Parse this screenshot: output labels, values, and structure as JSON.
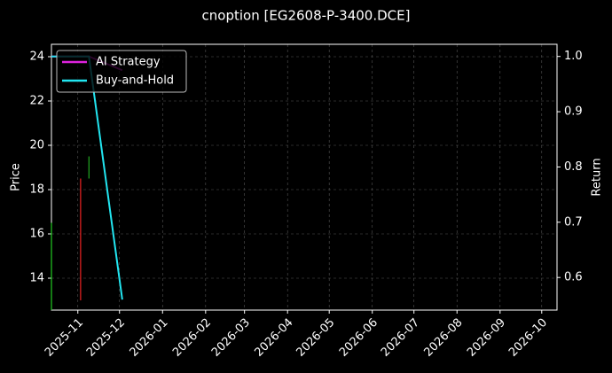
{
  "chart_data": {
    "type": "candle-return",
    "title": "cnoption [EG2608-P-3400.DCE]",
    "y_label": "Price",
    "y2_label": "Return",
    "xlim": [
      "2025-10-13",
      "2026-10-12"
    ],
    "xticks": [
      "2025-11",
      "2025-12",
      "2026-01",
      "2026-02",
      "2026-03",
      "2026-04",
      "2026-05",
      "2026-06",
      "2026-07",
      "2026-08",
      "2026-09",
      "2026-10"
    ],
    "ylim": [
      12.56,
      24.56
    ],
    "yticks": [
      14,
      16,
      18,
      20,
      22,
      24
    ],
    "y2lim": [
      0.541,
      1.022
    ],
    "y2ticks": [
      0.6,
      0.7,
      0.8,
      0.9,
      {
        "value": 1.0,
        "label": "1.0"
      }
    ],
    "grid": true,
    "legend": "upper left",
    "candles": {
      "x": [
        "2025-10-13",
        "2025-11-03",
        "2025-11-09"
      ],
      "high": [
        16.5,
        18.5,
        19.5
      ],
      "low": [
        12.56,
        13.0,
        18.5
      ],
      "colors": [
        "#22cc22",
        "#ee2222",
        "#22aa22"
      ]
    },
    "x": [
      "2025-10-13",
      "2025-11-09",
      "2025-12-03"
    ],
    "series": [
      {
        "name": "AI Strategy",
        "color": "#dd22dd",
        "axis": "y2",
        "values": [
          1.0,
          1.0,
          0.975
        ]
      },
      {
        "name": "Buy-and-Hold",
        "color": "#22e5f0",
        "axis": "y2",
        "values": [
          1.0,
          1.0,
          0.56
        ]
      }
    ]
  }
}
